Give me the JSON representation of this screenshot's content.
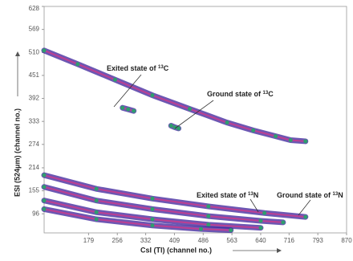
{
  "chart_data": {
    "type": "scatter",
    "xlabel": "CsI (Tl)  (channel no.)",
    "ylabel": "ESI  (524μm) (channel no.)",
    "xlim": [
      60,
      870
    ],
    "ylim": [
      47,
      628
    ],
    "xticks": [
      179,
      256,
      332,
      409,
      486,
      563,
      640,
      716,
      793,
      870
    ],
    "yticks": [
      96,
      155,
      214,
      274,
      333,
      392,
      451,
      510,
      569,
      628
    ],
    "series": [
      {
        "color": "#3b1f99",
        "x": [
          60,
          150,
          250,
          350,
          450,
          550,
          620,
          680,
          720,
          760
        ],
        "values": [
          515,
          480,
          440,
          400,
          365,
          330,
          310,
          295,
          285,
          282
        ]
      },
      {
        "color": "#3b1f99",
        "x": [
          270,
          285,
          300
        ],
        "values": [
          368,
          364,
          360
        ]
      },
      {
        "color": "#3b1f99",
        "x": [
          400,
          410,
          420
        ],
        "values": [
          322,
          318,
          315
        ]
      },
      {
        "color": "#3b1f99",
        "x": [
          60,
          200,
          350,
          500,
          650,
          760
        ],
        "values": [
          195,
          160,
          135,
          115,
          98,
          88
        ]
      },
      {
        "color": "#3b1f99",
        "x": [
          60,
          200,
          350,
          500,
          640,
          700
        ],
        "values": [
          165,
          130,
          108,
          90,
          78,
          74
        ]
      },
      {
        "color": "#3b1f99",
        "x": [
          60,
          200,
          350,
          500,
          640
        ],
        "values": [
          130,
          100,
          82,
          68,
          60
        ]
      },
      {
        "color": "#3b1f99",
        "x": [
          60,
          200,
          350,
          480,
          560
        ],
        "values": [
          108,
          82,
          66,
          57,
          54
        ]
      }
    ],
    "annotations": [
      {
        "text": "Exited state of ",
        "sup": "13",
        "after": "C"
      },
      {
        "text": "Ground state of ",
        "sup": "13",
        "after": "C"
      },
      {
        "text": "Exited state of ",
        "sup": "13",
        "after": "N"
      },
      {
        "text": "Ground state of ",
        "sup": "13",
        "after": "N"
      }
    ]
  }
}
